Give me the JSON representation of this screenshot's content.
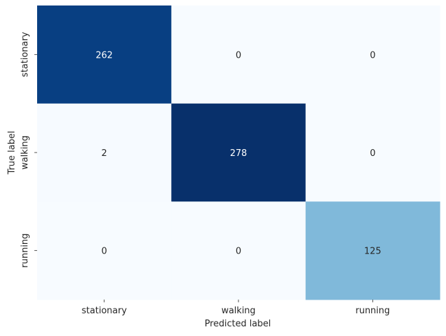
{
  "chart_data": {
    "type": "heatmap",
    "title": "",
    "xlabel": "Predicted label",
    "ylabel": "True label",
    "x_categories": [
      "stationary",
      "walking",
      "running"
    ],
    "y_categories": [
      "stationary",
      "walking",
      "running"
    ],
    "values": [
      [
        262,
        0,
        0
      ],
      [
        2,
        278,
        0
      ],
      [
        0,
        0,
        125
      ]
    ],
    "colormap": "Blues",
    "colorbar": false,
    "annotated": true
  }
}
